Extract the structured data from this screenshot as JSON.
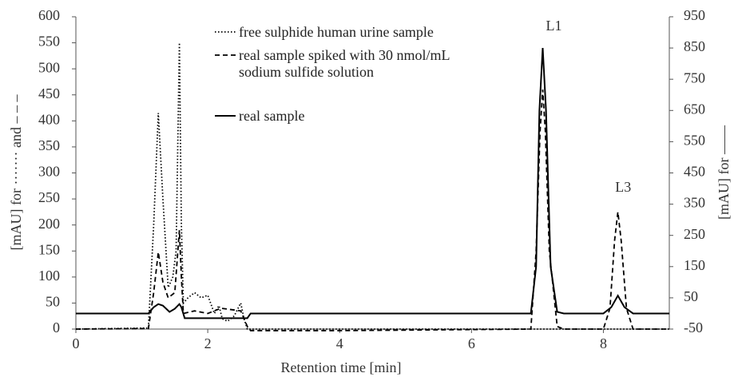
{
  "chart_data": {
    "type": "line",
    "xlabel": "Retention time [min]",
    "ylabel": "[mAU] for ······· and – – –",
    "y2label": "[mAU] for ——",
    "xlim": [
      0,
      9
    ],
    "xticks": [
      0,
      2,
      4,
      6,
      8
    ],
    "ylim": [
      0,
      600
    ],
    "yticks": [
      0,
      50,
      100,
      150,
      200,
      250,
      300,
      350,
      400,
      450,
      500,
      550,
      600
    ],
    "y2lim": [
      -50,
      950
    ],
    "y2ticks": [
      -50,
      50,
      150,
      250,
      350,
      450,
      550,
      650,
      750,
      850,
      950
    ],
    "grid": false,
    "annotations": [
      {
        "text": "L1",
        "x": 7.25,
        "y": 580
      },
      {
        "text": "L3",
        "x": 8.3,
        "y": 270
      }
    ],
    "series": [
      {
        "name": "free sulphide human urine sample",
        "color": "#000000",
        "line_style": "dotted",
        "x": [
          0,
          1.1,
          1.18,
          1.25,
          1.32,
          1.4,
          1.47,
          1.52,
          1.57,
          1.6,
          1.63,
          1.7,
          1.8,
          1.9,
          2.0,
          2.1,
          2.17,
          2.22,
          2.3,
          2.4,
          2.5,
          2.55,
          2.6,
          3,
          5,
          7,
          9
        ],
        "values": [
          0,
          2,
          200,
          415,
          250,
          80,
          100,
          150,
          550,
          200,
          50,
          60,
          70,
          60,
          65,
          30,
          45,
          20,
          15,
          25,
          50,
          20,
          0,
          0,
          0,
          0,
          0
        ]
      },
      {
        "name": "real sample spiked with 30 nmol/mL sodium sulfide solution",
        "color": "#000000",
        "line_style": "dashed",
        "x": [
          0,
          1.1,
          1.18,
          1.25,
          1.32,
          1.4,
          1.5,
          1.57,
          1.6,
          1.63,
          1.8,
          2.0,
          2.2,
          2.5,
          2.6,
          2.65,
          4,
          5,
          6.9,
          6.98,
          7.04,
          7.08,
          7.12,
          7.18,
          7.3,
          7.4,
          8.0,
          8.1,
          8.17,
          8.22,
          8.27,
          8.35,
          8.45,
          9
        ],
        "values": [
          0,
          1,
          70,
          148,
          90,
          60,
          70,
          190,
          100,
          30,
          35,
          30,
          40,
          35,
          5,
          -3,
          -3,
          -2,
          0,
          150,
          380,
          460,
          380,
          150,
          5,
          0,
          0,
          40,
          170,
          225,
          170,
          40,
          0,
          0
        ]
      },
      {
        "name": "real sample",
        "color": "#000000",
        "line_style": "solid",
        "axis": "y2",
        "x": [
          0,
          1.1,
          1.18,
          1.25,
          1.32,
          1.42,
          1.5,
          1.57,
          1.6,
          1.65,
          2.6,
          2.65,
          6.9,
          6.98,
          7.03,
          7.08,
          7.13,
          7.2,
          7.3,
          7.4,
          8.0,
          8.12,
          8.22,
          8.32,
          8.45,
          9
        ],
        "values": [
          0,
          0,
          20,
          30,
          25,
          5,
          15,
          30,
          20,
          -15,
          -15,
          0,
          0,
          150,
          650,
          850,
          650,
          150,
          5,
          0,
          0,
          20,
          57,
          20,
          0,
          0
        ]
      }
    ]
  }
}
